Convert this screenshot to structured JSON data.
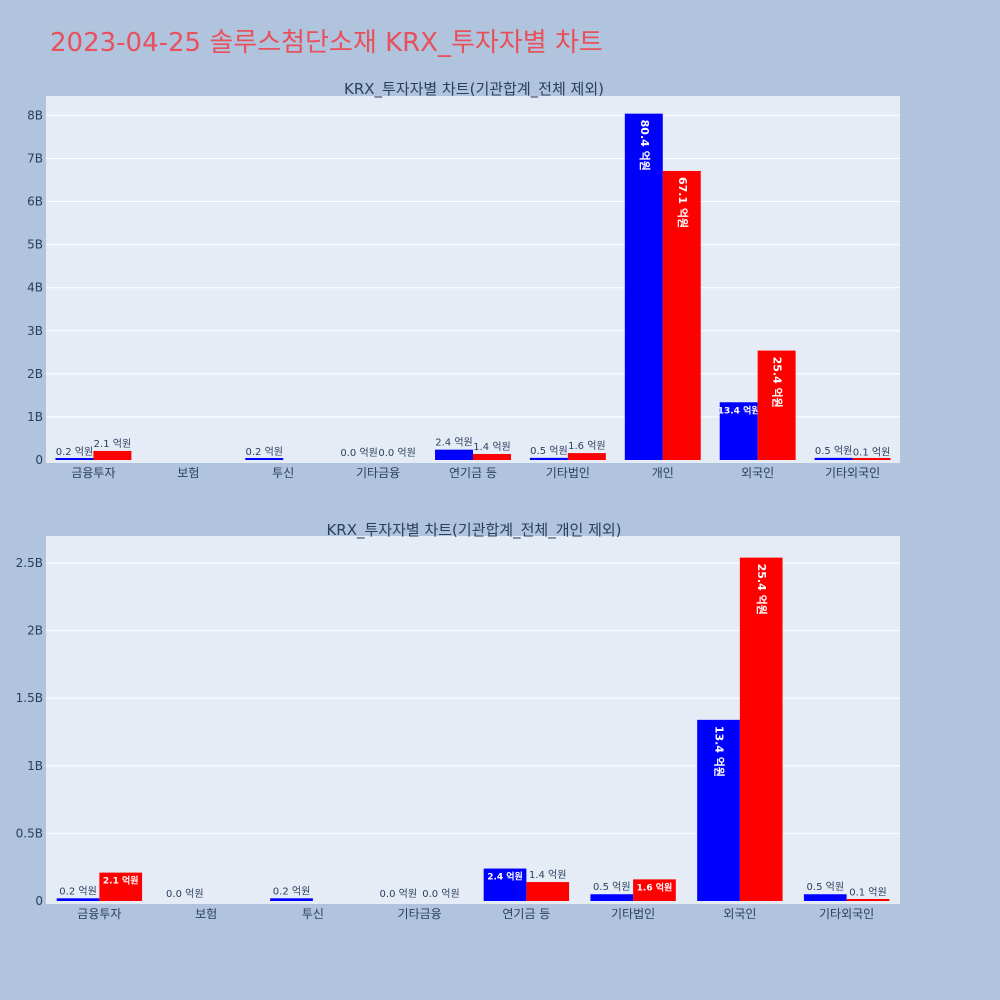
{
  "page_title": "2023-04-25 솔루스첨단소재 KRX_투자자별 차트",
  "colors": {
    "series_a": "#0000ff",
    "series_b": "#ff0000",
    "plot_bg": "#e5ecf6",
    "page_bg": "#b0c4de",
    "title": "#e8505b"
  },
  "chart_data": [
    {
      "type": "bar",
      "title": "KRX_투자자별 차트(기관합계_전체 제외)",
      "categories": [
        "금융투자",
        "보험",
        "투신",
        "기타금융",
        "연기금 등",
        "기타법인",
        "개인",
        "외국인",
        "기타외국인"
      ],
      "yticks": [
        0,
        1000000000,
        2000000000,
        3000000000,
        4000000000,
        5000000000,
        6000000000,
        7000000000,
        8000000000
      ],
      "ytick_labels": [
        "0",
        "1B",
        "2B",
        "3B",
        "4B",
        "5B",
        "6B",
        "7B",
        "8B"
      ],
      "ylim": [
        0,
        8450000000
      ],
      "grid": true,
      "series": [
        {
          "color": "#0000ff",
          "values": [
            20000000,
            null,
            20000000,
            0,
            240000000,
            50000000,
            8040000000,
            1340000000,
            50000000
          ],
          "labels": [
            "0.2 억원",
            "",
            "0.2 억원",
            "0.0 억원",
            "2.4 억원",
            "0.5 억원",
            "80.4 억원",
            "13.4 억원",
            "0.5 억원"
          ]
        },
        {
          "color": "#ff0000",
          "values": [
            210000000,
            null,
            null,
            0,
            140000000,
            160000000,
            6710000000,
            2540000000,
            10000000
          ],
          "labels": [
            "2.1 억원",
            "",
            "",
            "0.0 억원",
            "1.4 억원",
            "1.6 억원",
            "67.1 억원",
            "25.4 억원",
            "0.1 억원"
          ]
        }
      ]
    },
    {
      "type": "bar",
      "title": "KRX_투자자별 차트(기관합계_전체_개인 제외)",
      "categories": [
        "금융투자",
        "보험",
        "투신",
        "기타금융",
        "연기금 등",
        "기타법인",
        "외국인",
        "기타외국인"
      ],
      "yticks": [
        0,
        500000000,
        1000000000,
        1500000000,
        2000000000,
        2500000000
      ],
      "ytick_labels": [
        "0",
        "0.5B",
        "1B",
        "1.5B",
        "2B",
        "2.5B"
      ],
      "ylim": [
        0,
        2700000000
      ],
      "grid": true,
      "series": [
        {
          "color": "#0000ff",
          "values": [
            20000000,
            0,
            20000000,
            0,
            240000000,
            50000000,
            1340000000,
            50000000
          ],
          "labels": [
            "0.2 억원",
            "0.0 억원",
            "0.2 억원",
            "0.0 억원",
            "2.4 억원",
            "0.5 억원",
            "13.4 억원",
            "0.5 억원"
          ]
        },
        {
          "color": "#ff0000",
          "values": [
            210000000,
            null,
            null,
            0,
            140000000,
            160000000,
            2540000000,
            10000000
          ],
          "labels": [
            "2.1 억원",
            "",
            "",
            "0.0 억원",
            "1.4 억원",
            "1.6 억원",
            "25.4 억원",
            "0.1 억원"
          ]
        }
      ]
    }
  ]
}
